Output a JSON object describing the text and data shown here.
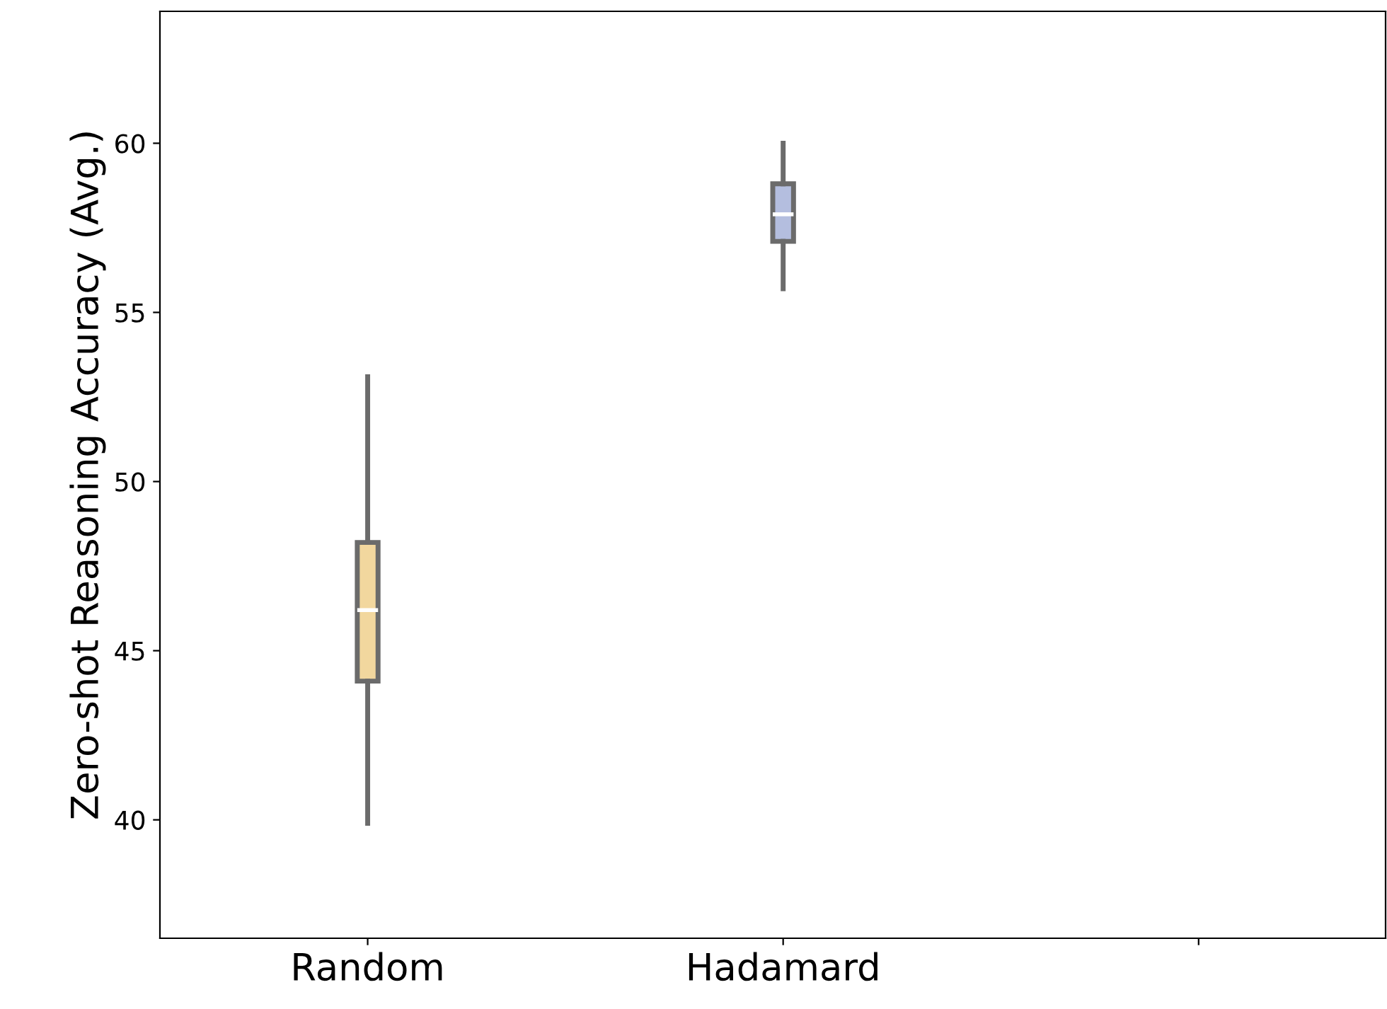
{
  "chart_data": {
    "type": "box",
    "ylabel": "Zero-shot Reasoning Accuracy (Avg.)",
    "categories": [
      "Random",
      "Hadamard",
      null
    ],
    "boxes": [
      {
        "low": 39.9,
        "q1": 44.1,
        "median": 46.2,
        "q3": 48.2,
        "high": 53.1
      },
      {
        "low": 55.7,
        "q1": 57.1,
        "median": 57.9,
        "q3": 58.8,
        "high": 60.0
      },
      null
    ],
    "colors": [
      "#f2d79e",
      "#b4bedf",
      null
    ],
    "ylim": [
      36.5,
      63.9
    ],
    "yticks": [
      40,
      45,
      50,
      55,
      60
    ],
    "grid": false
  }
}
